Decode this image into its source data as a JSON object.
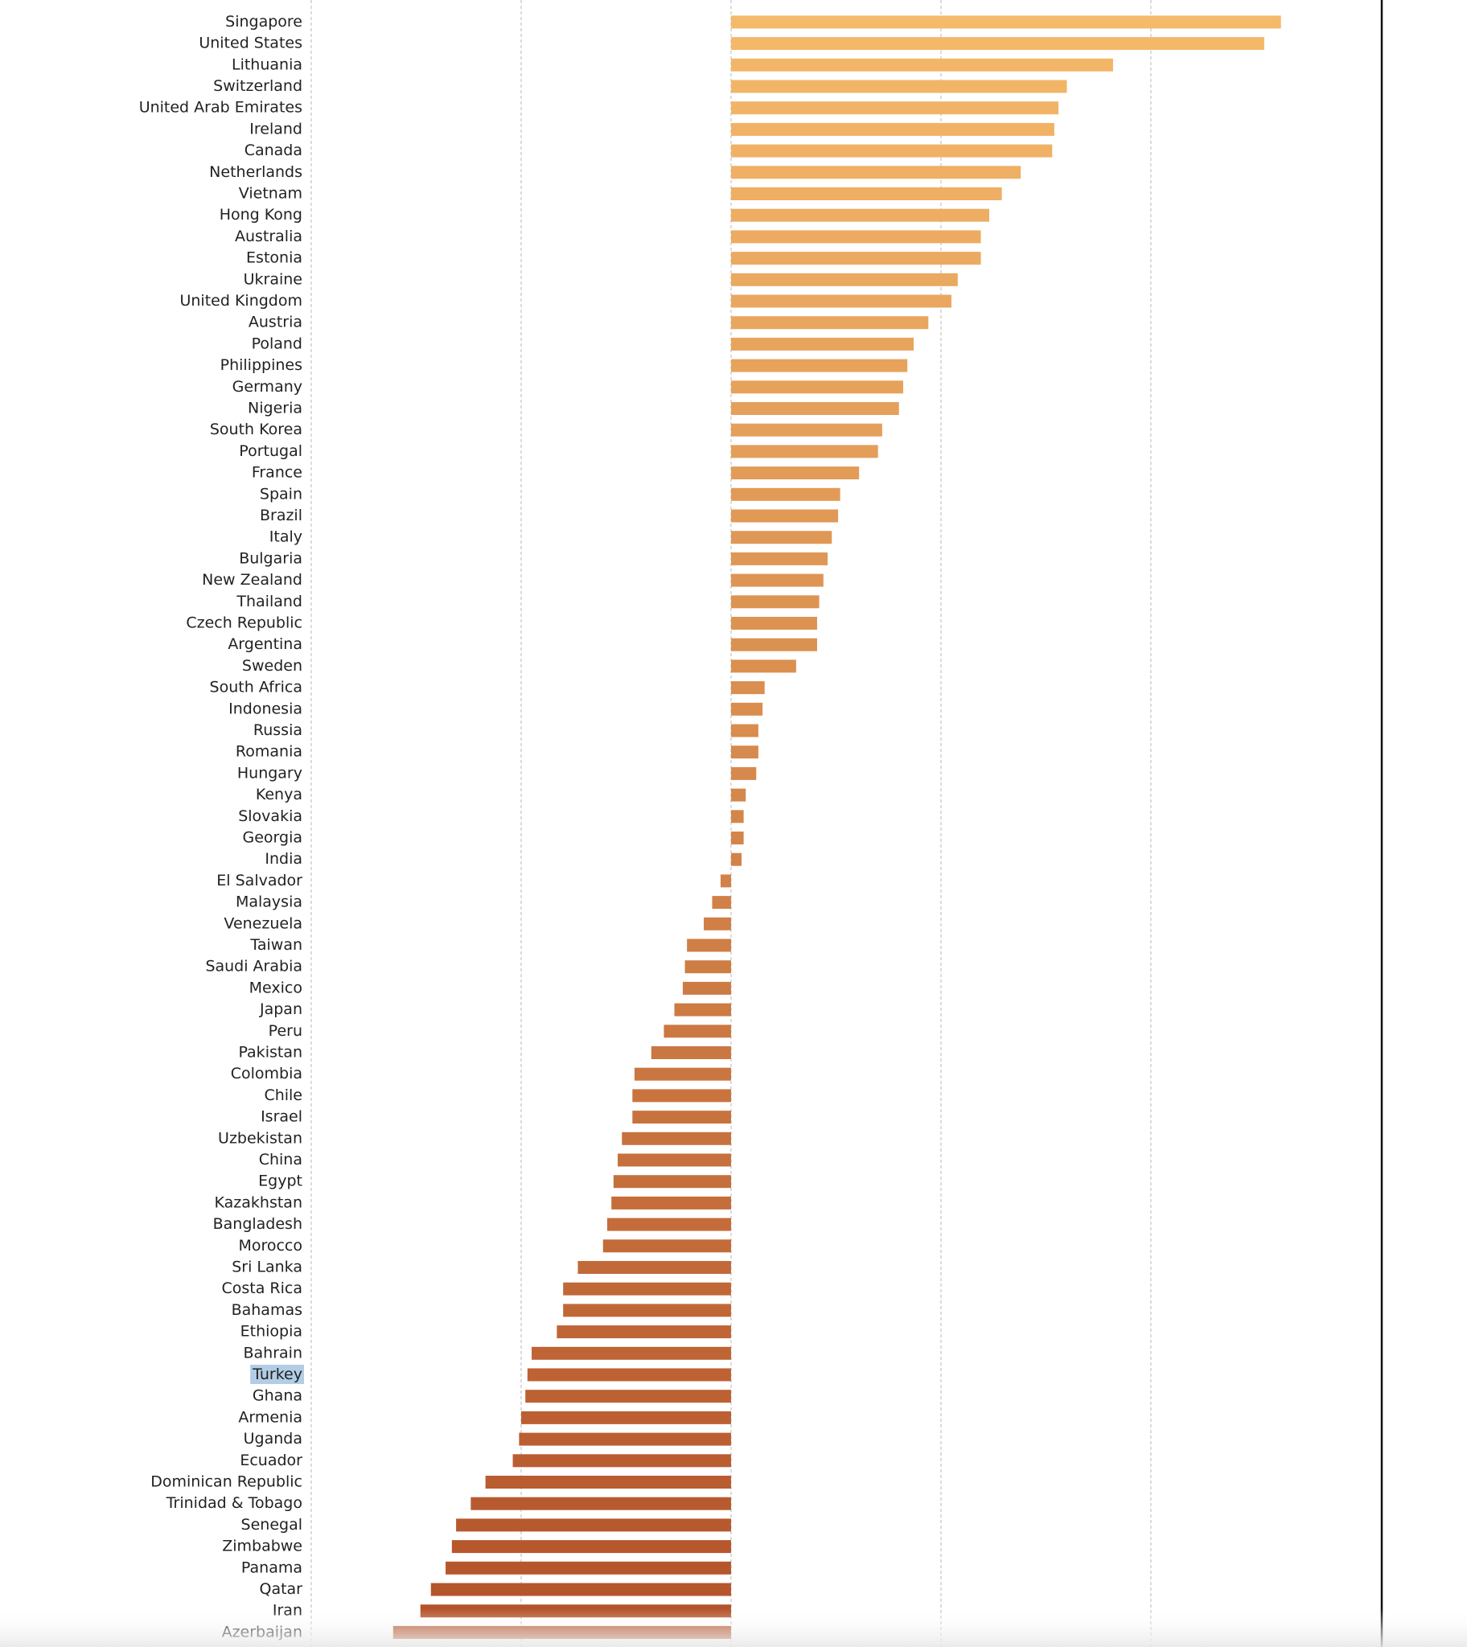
{
  "chart_data": {
    "type": "barh",
    "categories": [
      "Singapore",
      "United States",
      "Lithuania",
      "Switzerland",
      "United Arab Emirates",
      "Ireland",
      "Canada",
      "Netherlands",
      "Vietnam",
      "Hong Kong",
      "Australia",
      "Estonia",
      "Ukraine",
      "United Kingdom",
      "Austria",
      "Poland",
      "Philippines",
      "Germany",
      "Nigeria",
      "South Korea",
      "Portugal",
      "France",
      "Spain",
      "Brazil",
      "Italy",
      "Bulgaria",
      "New Zealand",
      "Thailand",
      "Czech Republic",
      "Argentina",
      "Sweden",
      "South Africa",
      "Indonesia",
      "Russia",
      "Romania",
      "Hungary",
      "Kenya",
      "Slovakia",
      "Georgia",
      "India",
      "El Salvador",
      "Malaysia",
      "Venezuela",
      "Taiwan",
      "Saudi Arabia",
      "Mexico",
      "Japan",
      "Peru",
      "Pakistan",
      "Colombia",
      "Chile",
      "Israel",
      "Uzbekistan",
      "China",
      "Egypt",
      "Kazakhstan",
      "Bangladesh",
      "Morocco",
      "Sri Lanka",
      "Costa Rica",
      "Bahamas",
      "Ethiopia",
      "Bahrain",
      "Turkey",
      "Ghana",
      "Armenia",
      "Uganda",
      "Ecuador",
      "Dominican Republic",
      "Trinidad & Tobago",
      "Senegal",
      "Zimbabwe",
      "Panama",
      "Qatar",
      "Iran",
      "Azerbaijan"
    ],
    "values": [
      26.2,
      25.4,
      18.2,
      16.0,
      15.6,
      15.4,
      15.3,
      13.8,
      12.9,
      12.3,
      11.9,
      11.9,
      10.8,
      10.5,
      9.4,
      8.7,
      8.4,
      8.2,
      8.0,
      7.2,
      7.0,
      6.1,
      5.2,
      5.1,
      4.8,
      4.6,
      4.4,
      4.2,
      4.1,
      4.1,
      3.1,
      1.6,
      1.5,
      1.3,
      1.3,
      1.2,
      0.7,
      0.6,
      0.6,
      0.5,
      -0.5,
      -0.9,
      -1.3,
      -2.1,
      -2.2,
      -2.3,
      -2.7,
      -3.2,
      -3.8,
      -4.6,
      -4.7,
      -4.7,
      -5.2,
      -5.4,
      -5.6,
      -5.7,
      -5.9,
      -6.1,
      -7.3,
      -8.0,
      -8.0,
      -8.3,
      -9.5,
      -9.7,
      -9.8,
      -10.0,
      -10.1,
      -10.4,
      -11.7,
      -12.4,
      -13.1,
      -13.3,
      -13.6,
      -14.3,
      -14.8,
      -16.1
    ],
    "colors": [
      "#f5b96a",
      "#b3522a"
    ],
    "highlighted_category": "Turkey",
    "xlim": [
      -20,
      31
    ],
    "xticks": [
      -20,
      -10,
      0,
      10,
      20
    ],
    "grid": true
  }
}
